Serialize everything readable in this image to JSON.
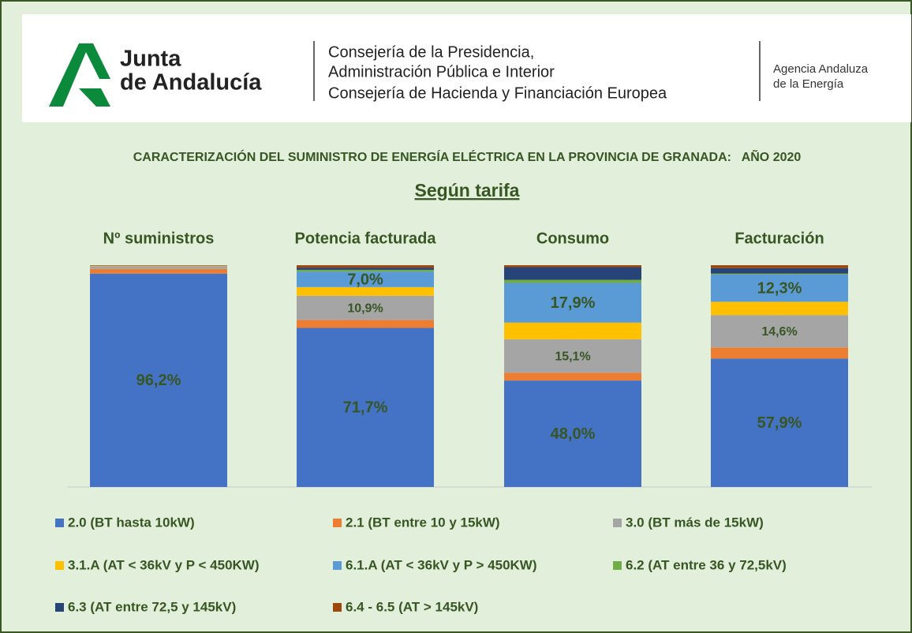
{
  "header": {
    "brand": [
      "Junta",
      "de Andalucía"
    ],
    "departments": [
      "Consejería de la Presidencia,",
      "Administración Pública e Interior",
      "Consejería de Hacienda y Financiación Europea"
    ],
    "agency": [
      "Agencia Andaluza",
      "de la Energía"
    ]
  },
  "chart_data": {
    "type": "stacked_bar",
    "title": "CARACTERIZACIÓN DEL SUMINISTRO DE ENERGÍA ELÉCTRICA EN LA PROVINCIA DE GRANADA:   AÑO 2020",
    "subtitle": "Según tarifa",
    "categories": [
      "Nº suministros",
      "Potencia facturada",
      "Consumo",
      "Facturación"
    ],
    "ylim": [
      0,
      100
    ],
    "series": [
      {
        "name": "2.0 (BT hasta 10kW)",
        "color": "#4472c4",
        "values": [
          96.2,
          71.7,
          48.0,
          57.9
        ],
        "value_labels": [
          "96,2%",
          "71,7%",
          "48,0%",
          "57,9%"
        ]
      },
      {
        "name": "2.1 (BT entre 10 y 15kW)",
        "color": "#ed7d31",
        "values": [
          2.1,
          3.6,
          3.5,
          5.0
        ]
      },
      {
        "name": "3.0 (BT más de 15kW)",
        "color": "#a5a5a5",
        "values": [
          1.2,
          10.9,
          15.1,
          14.6
        ],
        "value_labels": [
          null,
          "10,9%",
          "15,1%",
          "14,6%"
        ]
      },
      {
        "name": "3.1.A (AT < 36kV y P < 450KW)",
        "color": "#ffc000",
        "values": [
          0.2,
          3.9,
          7.5,
          6.0
        ]
      },
      {
        "name": "6.1.A (AT < 36kV y P > 450KW)",
        "color": "#5b9bd5",
        "values": [
          0.1,
          7.0,
          17.9,
          12.3
        ],
        "value_labels": [
          null,
          "7,0%",
          "17,9%",
          "12,3%"
        ]
      },
      {
        "name": "6.2 (AT entre 36 y 72,5kV)",
        "color": "#70ad47",
        "values": [
          0.0,
          0.8,
          1.4,
          0.4
        ]
      },
      {
        "name": "6.3  (AT entre 72,5 y 145kV)",
        "color": "#264478",
        "values": [
          0.0,
          1.0,
          5.7,
          2.5
        ]
      },
      {
        "name": "6.4 - 6.5  (AT > 145kV)",
        "color": "#9e480e",
        "values": [
          0.2,
          1.1,
          0.9,
          1.3
        ]
      }
    ]
  }
}
